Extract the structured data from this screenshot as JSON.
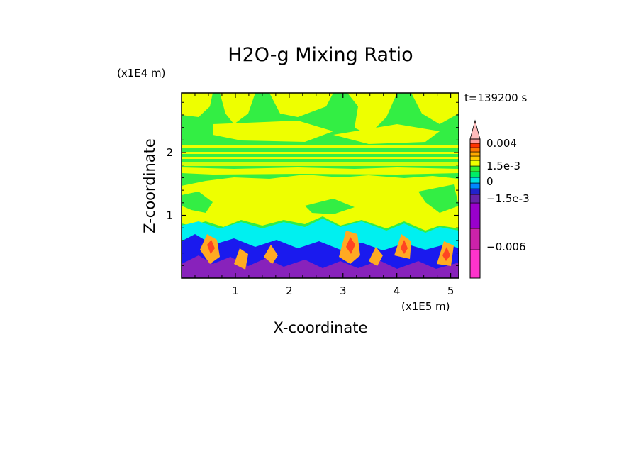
{
  "chart_data": {
    "type": "heatmap",
    "title": "H2O-g Mixing Ratio",
    "xlabel": "X-coordinate",
    "ylabel": "Z-coordinate",
    "x_unit": "(x1E5 m)",
    "y_unit": "(x1E4 m)",
    "time_label": "t=139200 s",
    "xlim": [
      0,
      5.15
    ],
    "ylim": [
      0,
      2.95
    ],
    "x_ticks": [
      "1",
      "2",
      "3",
      "4",
      "5"
    ],
    "y_ticks": [
      "1",
      "2"
    ],
    "colorbar": {
      "labels": [
        "0.004",
        "1.5e-3",
        "0",
        "−1.5e-3",
        "−0.006"
      ],
      "colors": [
        "#ff33cc",
        "#cc22aa",
        "#9900cc",
        "#6622aa",
        "#2222cc",
        "#0088ff",
        "#00e0e0",
        "#00ee66",
        "#33ee33",
        "#eeff00",
        "#ffcc00",
        "#ffaa00",
        "#ff7700",
        "#ff3300",
        "#ff9999",
        "#ffbbbb"
      ]
    },
    "colors": {
      "upper_green": "#33ee44",
      "yellow": "#eeff00",
      "cyan": "#00f0f0",
      "blue": "#1a1aee",
      "purple": "#8822bb",
      "orange": "#ffaa22",
      "red": "#ff4422"
    }
  }
}
